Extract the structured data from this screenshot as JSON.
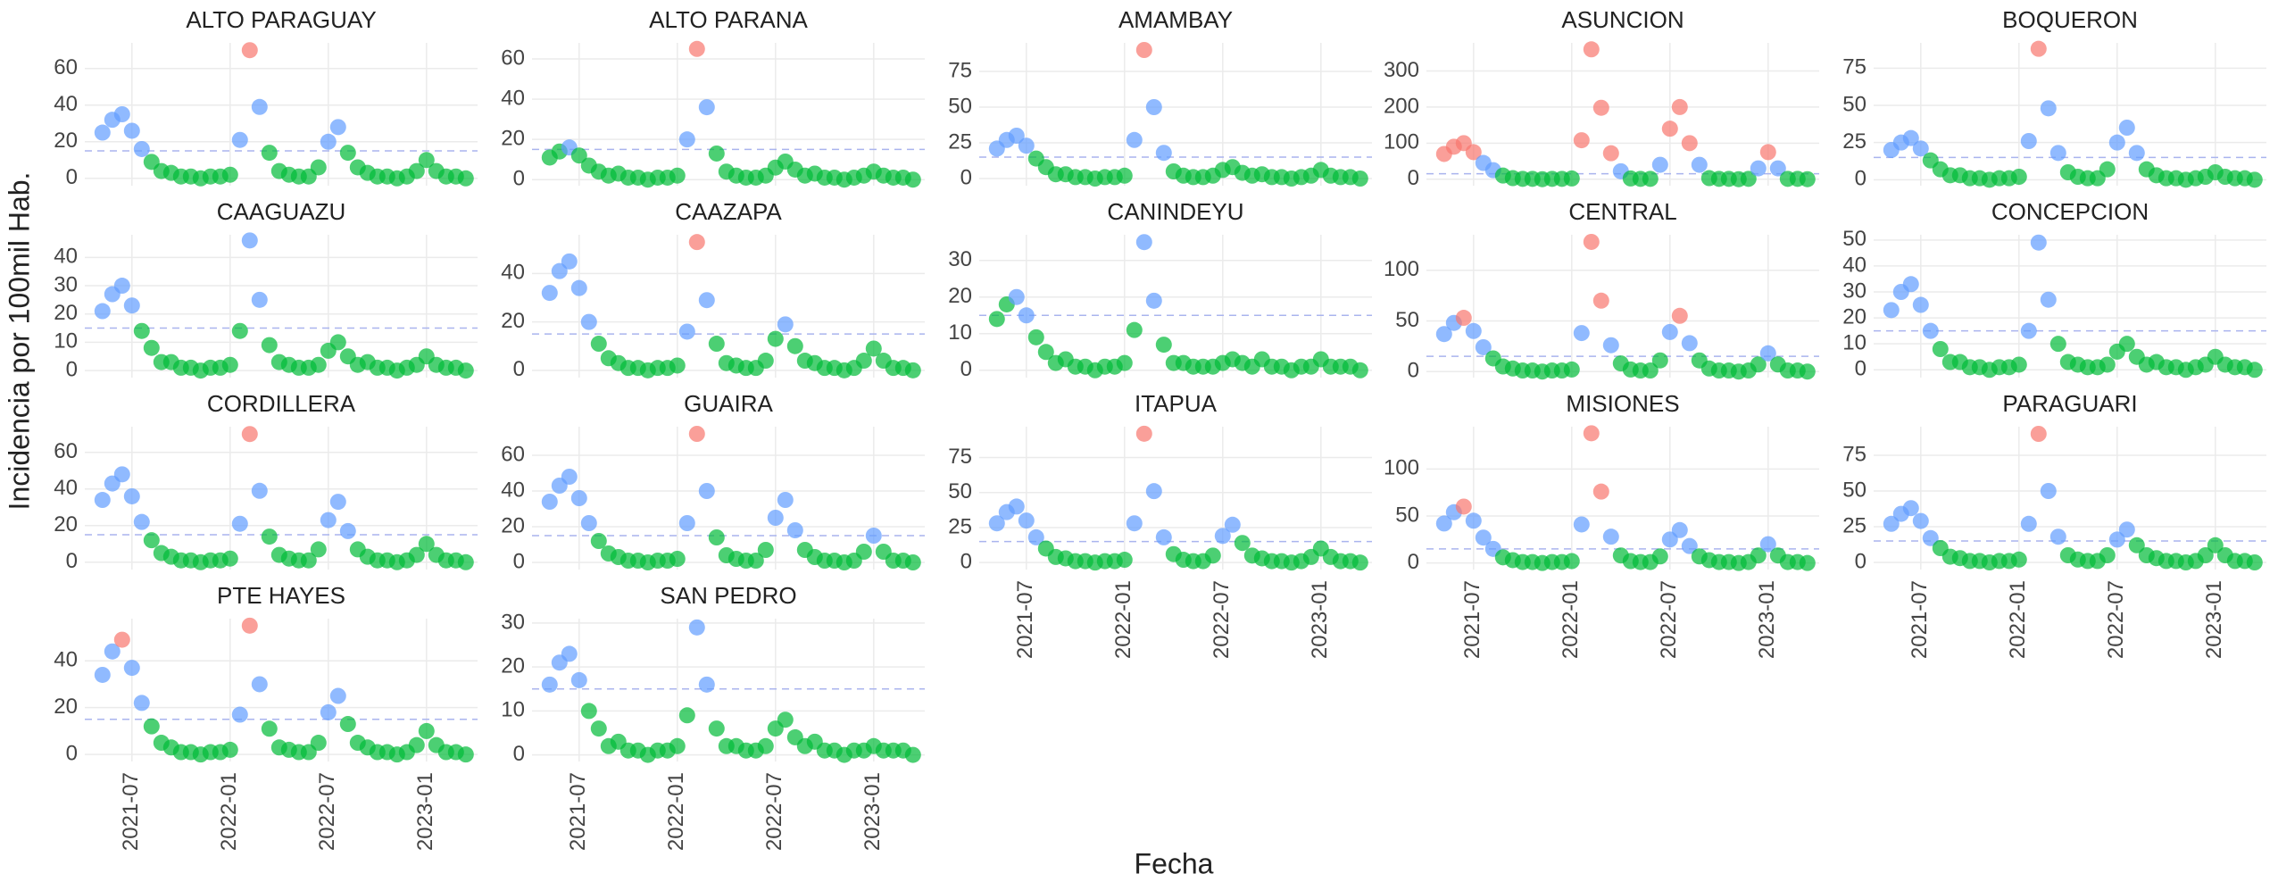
{
  "chart_data": {
    "type": "scatter",
    "y_label": "Incidencia por 100mil Hab.",
    "x_label": "Fecha",
    "hline": 15,
    "palette": {
      "g": "#00ba38",
      "b": "#619cff",
      "r": "#f8766d"
    },
    "grid": true,
    "xlim": [
      2021.26,
      2023.26
    ],
    "xticks": [
      {
        "value": 2021.5,
        "label": "2021-07"
      },
      {
        "value": 2022.0,
        "label": "2022-01"
      },
      {
        "value": 2022.5,
        "label": "2022-07"
      },
      {
        "value": 2023.0,
        "label": "2023-01"
      }
    ],
    "x": [
      2021.35,
      2021.4,
      2021.45,
      2021.5,
      2021.55,
      2021.6,
      2021.65,
      2021.7,
      2021.75,
      2021.8,
      2021.85,
      2021.9,
      2021.95,
      2022,
      2022.05,
      2022.1,
      2022.15,
      2022.2,
      2022.25,
      2022.3,
      2022.35,
      2022.4,
      2022.45,
      2022.5,
      2022.55,
      2022.6,
      2022.65,
      2022.7,
      2022.75,
      2022.8,
      2022.85,
      2022.9,
      2022.95,
      2023,
      2023.05,
      2023.1,
      2023.15,
      2023.2
    ],
    "facets": [
      {
        "title": "ALTO PARAGUAY",
        "ylim": [
          -4,
          74
        ],
        "yticks": [
          0,
          20,
          40,
          60
        ],
        "values": [
          25,
          32,
          35,
          26,
          16,
          9,
          4,
          3,
          1,
          1,
          0,
          1,
          1,
          2,
          21,
          70,
          39,
          14,
          4,
          2,
          1,
          1,
          6,
          20,
          28,
          14,
          6,
          3,
          1,
          1,
          0,
          1,
          4,
          10,
          4,
          1,
          1,
          0
        ],
        "levels": "bbbbbgggggggggbrbggggggbbggggggggggggg"
      },
      {
        "title": "ALTO PARANA",
        "ylim": [
          -3,
          68
        ],
        "yticks": [
          0,
          20,
          40,
          60
        ],
        "values": [
          11,
          14,
          16,
          12,
          7,
          4,
          2,
          3,
          1,
          1,
          0,
          1,
          1,
          2,
          20,
          65,
          36,
          13,
          4,
          2,
          1,
          1,
          2,
          6,
          9,
          5,
          2,
          3,
          1,
          1,
          0,
          1,
          2,
          4,
          2,
          1,
          1,
          0
        ],
        "levels": "ggbgggggggggggbrbggggggggggggggggggggg"
      },
      {
        "title": "AMAMBAY",
        "ylim": [
          -5,
          95
        ],
        "yticks": [
          0,
          25,
          50,
          75
        ],
        "values": [
          21,
          27,
          30,
          23,
          14,
          8,
          3,
          3,
          1,
          1,
          0,
          1,
          1,
          2,
          27,
          90,
          50,
          18,
          5,
          2,
          1,
          1,
          2,
          6,
          8,
          4,
          2,
          3,
          1,
          1,
          0,
          1,
          2,
          6,
          2,
          1,
          1,
          0
        ],
        "levels": "bbbbggggggggggbrbbgggggggggggggggggggg"
      },
      {
        "title": "ASUNCION",
        "ylim": [
          -18,
          378
        ],
        "yticks": [
          0,
          100,
          200,
          300
        ],
        "values": [
          70,
          90,
          100,
          75,
          45,
          25,
          10,
          3,
          1,
          1,
          0,
          1,
          1,
          2,
          108,
          360,
          198,
          72,
          22,
          2,
          1,
          1,
          40,
          140,
          200,
          100,
          40,
          3,
          1,
          1,
          0,
          1,
          30,
          75,
          30,
          1,
          1,
          0
        ],
        "levels": "rrrrbbggggggggrrrrbgggbrrrbgggggbrbggg"
      },
      {
        "title": "BOQUERON",
        "ylim": [
          -4,
          92
        ],
        "yticks": [
          0,
          25,
          50,
          75
        ],
        "values": [
          20,
          25,
          28,
          21,
          13,
          7,
          3,
          3,
          1,
          1,
          0,
          1,
          1,
          2,
          26,
          88,
          48,
          18,
          5,
          2,
          1,
          1,
          7,
          25,
          35,
          18,
          7,
          3,
          1,
          1,
          0,
          1,
          2,
          5,
          2,
          1,
          1,
          0
        ],
        "levels": "bbbbggggggggggbrbbgggggbbbgggggggggggg"
      },
      {
        "title": "CAAGUAZU",
        "ylim": [
          -2.5,
          48
        ],
        "yticks": [
          0,
          10,
          20,
          30,
          40
        ],
        "values": [
          21,
          27,
          30,
          23,
          14,
          8,
          3,
          3,
          1,
          1,
          0,
          1,
          1,
          2,
          14,
          46,
          25,
          9,
          3,
          2,
          1,
          1,
          2,
          7,
          10,
          5,
          2,
          3,
          1,
          1,
          0,
          1,
          2,
          5,
          2,
          1,
          1,
          0
        ],
        "levels": "bbbbgggggggggggbbggggggggggggggggggggg"
      },
      {
        "title": "CAAZAPA",
        "ylim": [
          -3,
          56
        ],
        "yticks": [
          0,
          20,
          40
        ],
        "values": [
          32,
          41,
          45,
          34,
          20,
          11,
          5,
          3,
          1,
          1,
          0,
          1,
          1,
          2,
          16,
          53,
          29,
          11,
          3,
          2,
          1,
          1,
          4,
          13,
          19,
          10,
          4,
          3,
          1,
          1,
          0,
          1,
          4,
          9,
          4,
          1,
          1,
          0
        ],
        "levels": "bbbbbgggggggggbrbgggggggbggggggggggggg"
      },
      {
        "title": "CANINDEYU",
        "ylim": [
          -2,
          37
        ],
        "yticks": [
          0,
          10,
          20,
          30
        ],
        "values": [
          14,
          18,
          20,
          15,
          9,
          5,
          2,
          3,
          1,
          1,
          0,
          1,
          1,
          2,
          11,
          35,
          19,
          7,
          2,
          2,
          1,
          1,
          1,
          2,
          3,
          2,
          1,
          3,
          1,
          1,
          0,
          1,
          1,
          3,
          1,
          1,
          1,
          0
        ],
        "levels": "ggbbgggggggggggbbggggggggggggggggggggg"
      },
      {
        "title": "CENTRAL",
        "ylim": [
          -6,
          135
        ],
        "yticks": [
          0,
          50,
          100
        ],
        "values": [
          37,
          48,
          53,
          40,
          24,
          13,
          5,
          3,
          1,
          1,
          0,
          1,
          1,
          2,
          38,
          128,
          70,
          26,
          8,
          2,
          1,
          1,
          11,
          39,
          55,
          28,
          11,
          3,
          1,
          1,
          0,
          1,
          7,
          18,
          7,
          1,
          1,
          0
        ],
        "levels": "bbrbbgggggggggbrrbgggggbrbgggggggbgggg"
      },
      {
        "title": "CONCEPCION",
        "ylim": [
          -3,
          52
        ],
        "yticks": [
          0,
          10,
          20,
          30,
          40,
          50
        ],
        "values": [
          23,
          30,
          33,
          25,
          15,
          8,
          3,
          3,
          1,
          1,
          0,
          1,
          1,
          2,
          15,
          49,
          27,
          10,
          3,
          2,
          1,
          1,
          2,
          7,
          10,
          5,
          2,
          3,
          1,
          1,
          0,
          1,
          2,
          5,
          2,
          1,
          1,
          0
        ],
        "levels": "bbbbbgggggggggbbbggggggggggggggggggggg"
      },
      {
        "title": "CORDILLERA",
        "ylim": [
          -4,
          74
        ],
        "yticks": [
          0,
          20,
          40,
          60
        ],
        "values": [
          34,
          43,
          48,
          36,
          22,
          12,
          5,
          3,
          1,
          1,
          0,
          1,
          1,
          2,
          21,
          70,
          39,
          14,
          4,
          2,
          1,
          1,
          7,
          23,
          33,
          17,
          7,
          3,
          1,
          1,
          0,
          1,
          4,
          10,
          4,
          1,
          1,
          0
        ],
        "levels": "bbbbbgggggggggbrbggggggbbbgggggggggggg"
      },
      {
        "title": "GUAIRA",
        "ylim": [
          -4,
          76
        ],
        "yticks": [
          0,
          20,
          40,
          60
        ],
        "values": [
          34,
          43,
          48,
          36,
          22,
          12,
          5,
          3,
          1,
          1,
          0,
          1,
          1,
          2,
          22,
          72,
          40,
          14,
          4,
          2,
          1,
          1,
          7,
          25,
          35,
          18,
          7,
          3,
          1,
          1,
          0,
          1,
          6,
          15,
          6,
          1,
          1,
          0
        ],
        "levels": "bbbbbgggggggggbrbggggggbbbgggggggbgggg"
      },
      {
        "title": "ITAPUA",
        "ylim": [
          -5,
          97
        ],
        "yticks": [
          0,
          25,
          50,
          75
        ],
        "values": [
          28,
          36,
          40,
          30,
          18,
          10,
          4,
          3,
          1,
          1,
          0,
          1,
          1,
          2,
          28,
          92,
          51,
          18,
          6,
          2,
          1,
          1,
          5,
          19,
          27,
          14,
          5,
          3,
          1,
          1,
          0,
          1,
          4,
          10,
          4,
          1,
          1,
          0
        ],
        "levels": "bbbbbgggggggggbrbbgggggbbggggggggggggg"
      },
      {
        "title": "MISIONES",
        "ylim": [
          -7,
          145
        ],
        "yticks": [
          0,
          50,
          100
        ],
        "values": [
          42,
          54,
          60,
          45,
          27,
          15,
          6,
          3,
          1,
          1,
          0,
          1,
          1,
          2,
          41,
          138,
          76,
          28,
          8,
          2,
          1,
          1,
          7,
          25,
          35,
          18,
          7,
          3,
          1,
          1,
          0,
          1,
          8,
          20,
          8,
          1,
          1,
          0
        ],
        "levels": "bbrbbbggggggggbrrbgggggbbbgggggggbgggg"
      },
      {
        "title": "PARAGUARI",
        "ylim": [
          -5,
          95
        ],
        "yticks": [
          0,
          25,
          50,
          75
        ],
        "values": [
          27,
          34,
          38,
          29,
          17,
          10,
          4,
          3,
          1,
          1,
          0,
          1,
          1,
          2,
          27,
          90,
          50,
          18,
          5,
          2,
          1,
          1,
          5,
          16,
          23,
          12,
          5,
          3,
          1,
          1,
          0,
          1,
          5,
          12,
          5,
          1,
          1,
          0
        ],
        "levels": "bbbbbgggggggggbrbbgggggbbggggggggggggg"
      },
      {
        "title": "PTE HAYES",
        "ylim": [
          -3,
          58
        ],
        "yticks": [
          0,
          20,
          40
        ],
        "values": [
          34,
          44,
          49,
          37,
          22,
          12,
          5,
          3,
          1,
          1,
          0,
          1,
          1,
          2,
          17,
          55,
          30,
          11,
          3,
          2,
          1,
          1,
          5,
          18,
          25,
          13,
          5,
          3,
          1,
          1,
          0,
          1,
          4,
          10,
          4,
          1,
          1,
          0
        ],
        "levels": "bbrbbgggggggggbrbggggggbbggggggggggggg"
      },
      {
        "title": "SAN PEDRO",
        "ylim": [
          -1.5,
          31
        ],
        "yticks": [
          0,
          10,
          20,
          30
        ],
        "values": [
          16,
          21,
          23,
          17,
          10,
          6,
          2,
          3,
          1,
          1,
          0,
          1,
          1,
          2,
          9,
          29,
          16,
          6,
          2,
          2,
          1,
          1,
          2,
          6,
          8,
          4,
          2,
          3,
          1,
          1,
          0,
          1,
          1,
          2,
          1,
          1,
          1,
          0
        ],
        "levels": "bbbbgggggggggggbbggggggggggggggggggggg"
      }
    ]
  }
}
